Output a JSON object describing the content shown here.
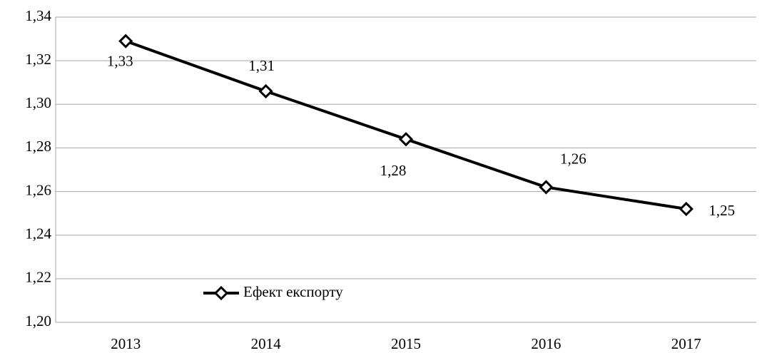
{
  "chart_data": {
    "type": "line",
    "categories": [
      "2013",
      "2014",
      "2015",
      "2016",
      "2017"
    ],
    "series": [
      {
        "name": "Ефект експорту",
        "color": "#000000",
        "values": [
          1.329,
          1.306,
          1.284,
          1.262,
          1.252
        ],
        "value_labels": [
          "1,33",
          "1,31",
          "1,28",
          "1,26",
          "1,25"
        ]
      }
    ],
    "ylim": [
      1.2,
      1.34
    ],
    "yticks": [
      {
        "value": 1.2,
        "label": "1,20"
      },
      {
        "value": 1.22,
        "label": "1,22"
      },
      {
        "value": 1.24,
        "label": "1,24"
      },
      {
        "value": 1.26,
        "label": "1,26"
      },
      {
        "value": 1.28,
        "label": "1,28"
      },
      {
        "value": 1.3,
        "label": "1,30"
      },
      {
        "value": 1.32,
        "label": "1,32"
      },
      {
        "value": 1.34,
        "label": "1,34"
      }
    ],
    "grid": true,
    "legend": "bottom-left"
  }
}
